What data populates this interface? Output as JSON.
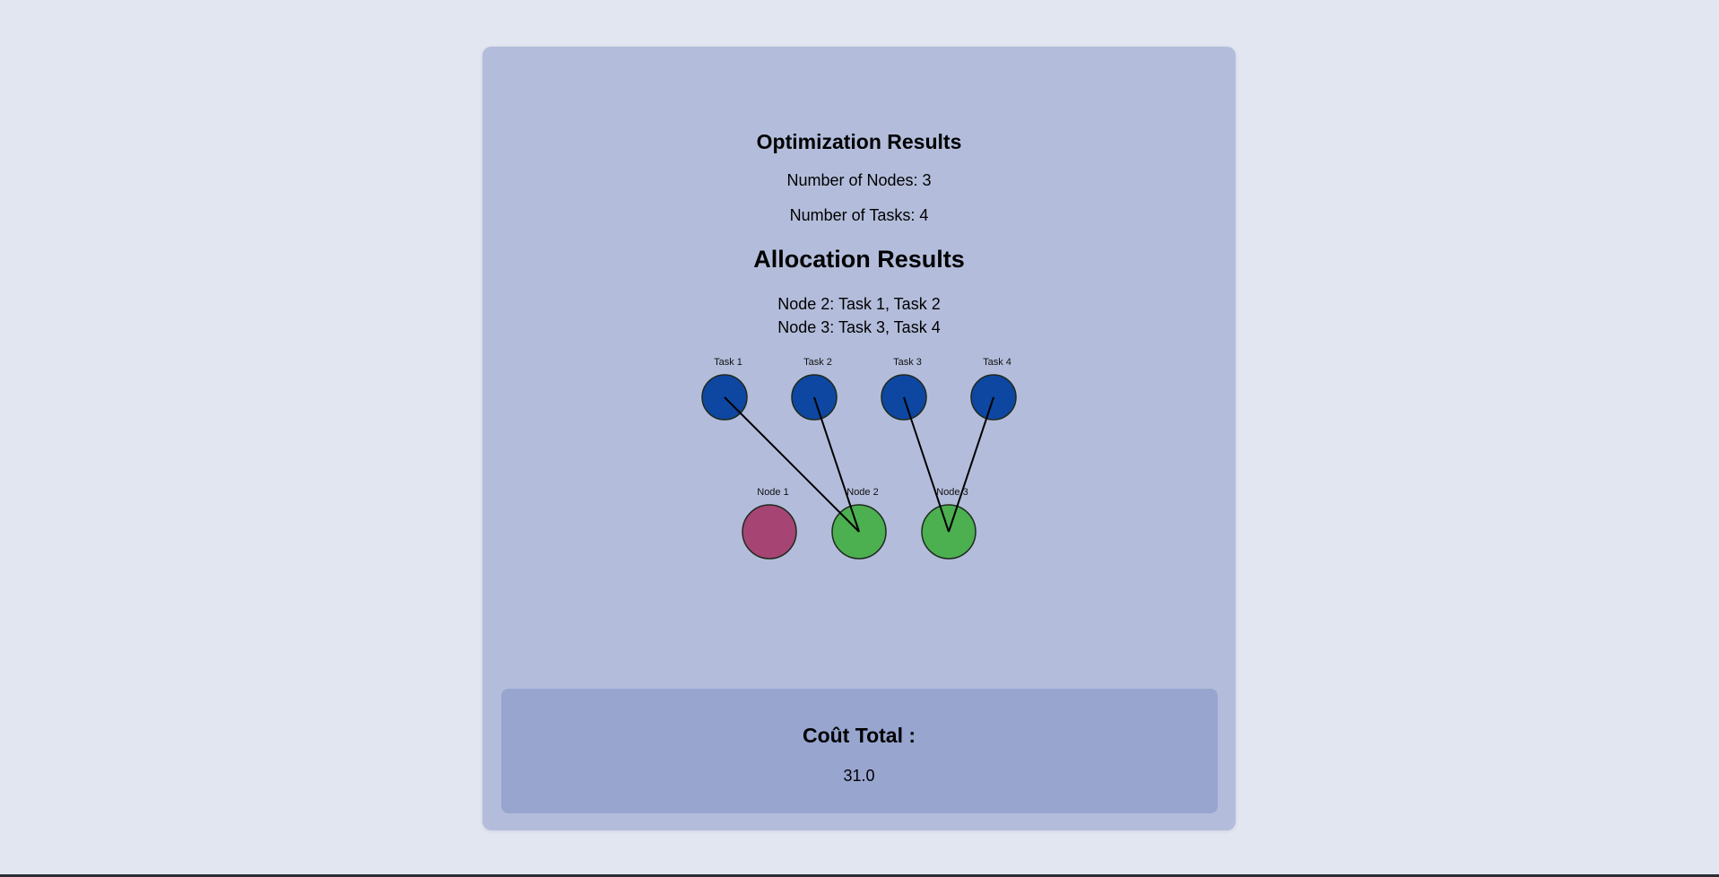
{
  "header": {
    "title": "Optimization Results",
    "nodes_line": "Number of Nodes: 3",
    "tasks_line": "Number of Tasks: 4"
  },
  "allocation": {
    "title": "Allocation Results",
    "lines": [
      "Node 2: Task 1, Task 2",
      "Node 3: Task 3, Task 4"
    ]
  },
  "graph": {
    "tasks": [
      {
        "label": "Task 1"
      },
      {
        "label": "Task 2"
      },
      {
        "label": "Task 3"
      },
      {
        "label": "Task 4"
      }
    ],
    "nodes": [
      {
        "label": "Node 1",
        "used": false
      },
      {
        "label": "Node 2",
        "used": true
      },
      {
        "label": "Node 3",
        "used": true
      }
    ],
    "assignments": [
      {
        "task": 0,
        "node": 1
      },
      {
        "task": 1,
        "node": 1
      },
      {
        "task": 2,
        "node": 2
      },
      {
        "task": 3,
        "node": 2
      }
    ],
    "colors": {
      "task_fill": "#0d47a1",
      "node_used_fill": "#4caf50",
      "node_unused_fill": "#a64573",
      "stroke": "#1f2a1f",
      "edge": "#000000"
    }
  },
  "cost": {
    "title": "Coût Total :",
    "value": "31.0"
  }
}
